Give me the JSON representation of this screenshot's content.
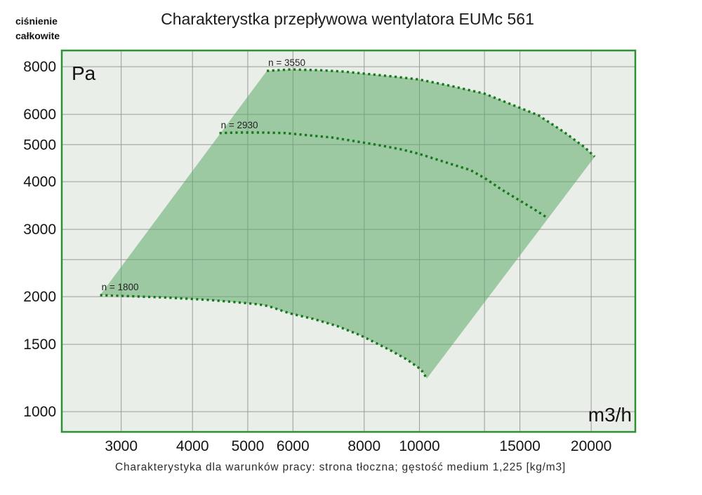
{
  "page": {
    "y_axis_name_line1": "ciśnienie",
    "y_axis_name_line2": "całkowite",
    "title": "Charakterystka przepływowa wentylatora EUMc 561",
    "caption": "Charakterystyka dla warunków pracy: strona tłoczna; gęstość medium 1,225 [kg/m3]"
  },
  "colors": {
    "plot_background": "#e9eee9",
    "plot_border": "#2f8f33",
    "gridline": "#9a9a9a",
    "curve": "#15791a",
    "region_fill": "rgba(93,169,104,0.55)",
    "tick_text": "#141414",
    "curve_label_text": "#222222"
  },
  "chart_data": {
    "type": "area",
    "title": "Charakterystka przepływowa wentylatora EUMc 561",
    "x_unit": "m3/h",
    "y_unit": "Pa",
    "x_scale": "log",
    "y_scale": "log",
    "xlim": [
      2360,
      23900
    ],
    "ylim": [
      885,
      8820
    ],
    "x_ticks": [
      3000,
      4000,
      5000,
      6000,
      8000,
      10000,
      15000,
      20000
    ],
    "x_minor_grid": [
      13000
    ],
    "y_ticks": [
      8000,
      6000,
      5000,
      4000,
      3000,
      2000,
      1500,
      1000
    ],
    "y_minor_grid": [
      2500
    ],
    "grid": true,
    "legend": "labels drawn at start of each curve",
    "series": [
      {
        "name": "n = 3550",
        "points": [
          [
            5400,
            7800
          ],
          [
            5950,
            7870
          ],
          [
            6710,
            7830
          ],
          [
            7370,
            7765
          ],
          [
            8030,
            7670
          ],
          [
            9070,
            7530
          ],
          [
            10000,
            7400
          ],
          [
            11380,
            7120
          ],
          [
            13000,
            6800
          ],
          [
            14440,
            6385
          ],
          [
            16170,
            5965
          ],
          [
            17910,
            5400
          ],
          [
            19450,
            4930
          ],
          [
            20290,
            4650
          ]
        ]
      },
      {
        "name": "n = 2930",
        "points": [
          [
            4460,
            5360
          ],
          [
            4815,
            5380
          ],
          [
            5290,
            5380
          ],
          [
            5820,
            5360
          ],
          [
            6395,
            5290
          ],
          [
            7020,
            5220
          ],
          [
            7735,
            5100
          ],
          [
            8490,
            4985
          ],
          [
            9325,
            4855
          ],
          [
            9980,
            4730
          ],
          [
            10355,
            4650
          ],
          [
            11375,
            4445
          ],
          [
            12280,
            4290
          ],
          [
            13105,
            4060
          ],
          [
            13870,
            3830
          ],
          [
            14845,
            3600
          ],
          [
            15850,
            3395
          ],
          [
            16680,
            3230
          ]
        ]
      },
      {
        "name": "n = 1800",
        "points": [
          [
            2755,
            2018
          ],
          [
            2960,
            2010
          ],
          [
            3260,
            2000
          ],
          [
            3575,
            1990
          ],
          [
            3925,
            1975
          ],
          [
            4325,
            1958
          ],
          [
            4750,
            1935
          ],
          [
            5215,
            1910
          ],
          [
            5440,
            1888
          ],
          [
            5925,
            1808
          ],
          [
            6525,
            1748
          ],
          [
            7165,
            1676
          ],
          [
            7865,
            1586
          ],
          [
            8325,
            1521
          ],
          [
            8910,
            1445
          ],
          [
            9515,
            1368
          ],
          [
            10065,
            1289
          ],
          [
            10300,
            1221
          ]
        ]
      }
    ],
    "region": {
      "description": "shaded operating envelope: top edge = n 3550 curve, bottom edge = n 1800 curve, straight left/right connectors",
      "top_series": 0,
      "bottom_series": 2
    }
  }
}
